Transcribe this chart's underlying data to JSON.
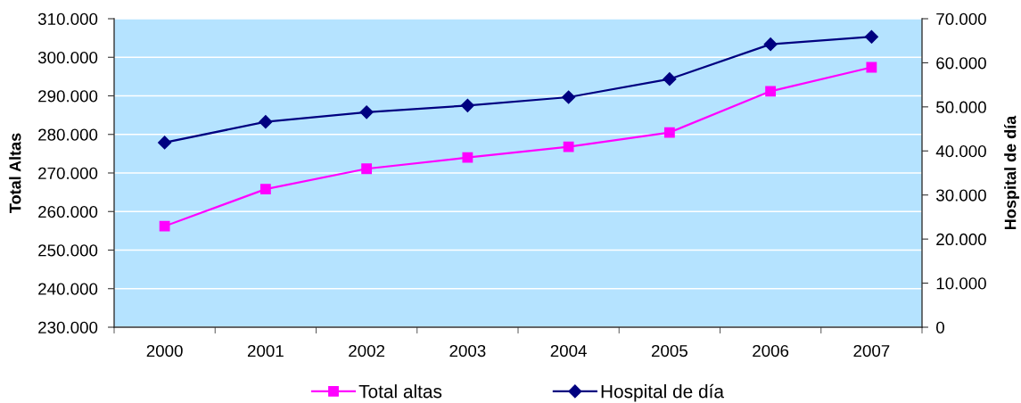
{
  "chart_data": {
    "type": "line",
    "ylabel": "Total Altas",
    "y2label": "Hospital de día",
    "categories": [
      "2000",
      "2001",
      "2002",
      "2003",
      "2004",
      "2005",
      "2006",
      "2007"
    ],
    "series": [
      {
        "name": "Total altas",
        "color": "#ff00ff",
        "marker": "square",
        "values": [
          256200,
          265800,
          271100,
          274000,
          276800,
          280500,
          291200,
          297400
        ]
      },
      {
        "name": "Hospital de día",
        "color": "#000080",
        "marker": "diamond",
        "axis": "y2",
        "values": [
          41900,
          46600,
          48800,
          50300,
          52200,
          56300,
          64200,
          65900
        ]
      }
    ],
    "ylim": [
      230000,
      310000
    ],
    "yticks": [
      {
        "value": 230000,
        "label": "230.000"
      },
      {
        "value": 240000,
        "label": "240.000"
      },
      {
        "value": 250000,
        "label": "250.000"
      },
      {
        "value": 260000,
        "label": "260.000"
      },
      {
        "value": 270000,
        "label": "270.000"
      },
      {
        "value": 280000,
        "label": "280.000"
      },
      {
        "value": 290000,
        "label": "290.000"
      },
      {
        "value": 300000,
        "label": "300.000"
      },
      {
        "value": 310000,
        "label": "310.000"
      }
    ],
    "y2lim": [
      0,
      70000
    ],
    "y2ticks": [
      0,
      {
        "value": 10000,
        "label": "10.000"
      },
      {
        "value": 20000,
        "label": "20.000"
      },
      {
        "value": 30000,
        "label": "30.000"
      },
      {
        "value": 40000,
        "label": "40.000"
      },
      {
        "value": 50000,
        "label": "50.000"
      },
      {
        "value": 60000,
        "label": "60.000"
      },
      {
        "value": 70000,
        "label": "70.000"
      }
    ],
    "grid": "y",
    "legend": "bottom",
    "line_style": "solid"
  }
}
